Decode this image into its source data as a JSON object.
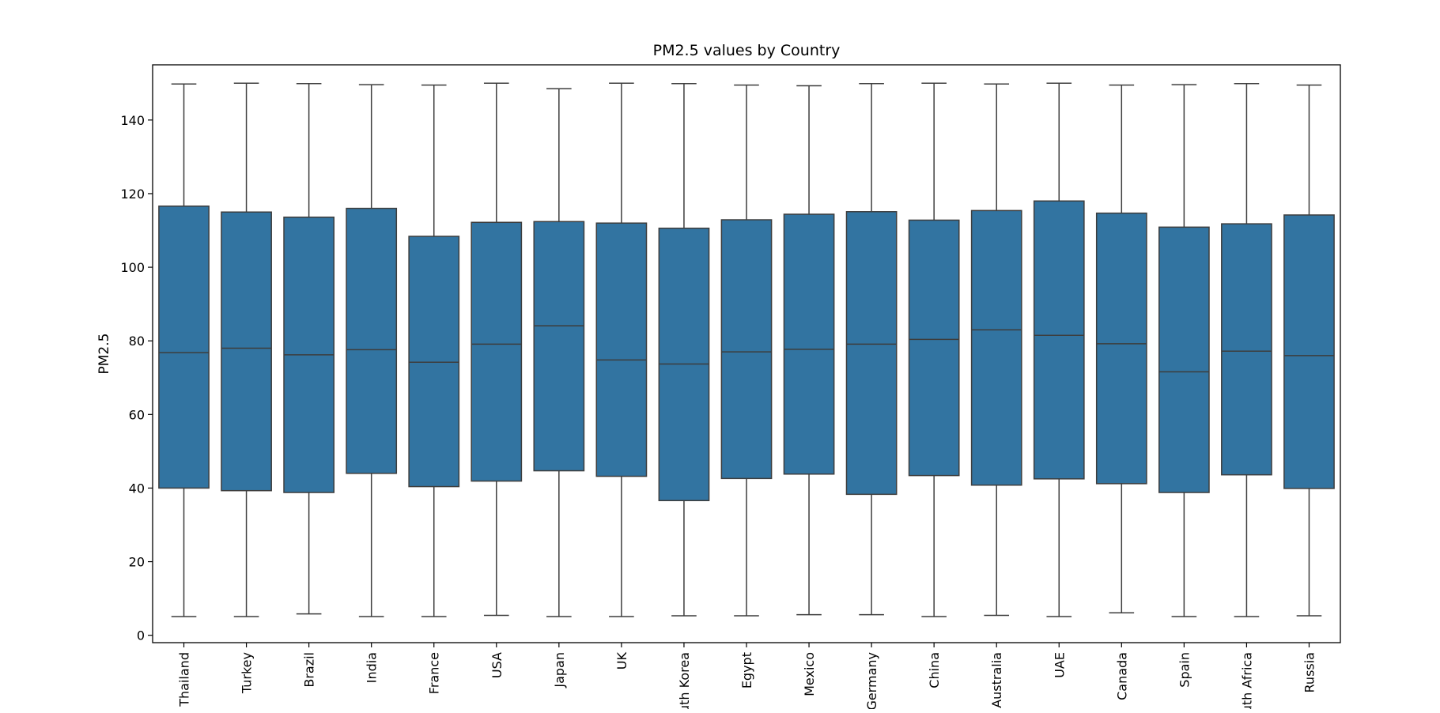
{
  "chart_data": {
    "type": "box",
    "title": "PM2.5 values by Country",
    "xlabel": "",
    "ylabel": "PM2.5",
    "ylim": [
      -2,
      155
    ],
    "yticks": [
      0,
      20,
      40,
      60,
      80,
      100,
      120,
      140
    ],
    "grid": false,
    "legend": "none",
    "colors": {
      "box_fill": "#3274a1",
      "line": "#3d3d3d",
      "frame": "#000000"
    },
    "categories": [
      "Thailand",
      "Turkey",
      "Brazil",
      "India",
      "France",
      "USA",
      "Japan",
      "UK",
      "South Korea",
      "Egypt",
      "Mexico",
      "Germany",
      "China",
      "Australia",
      "UAE",
      "Canada",
      "Spain",
      "South Africa",
      "Russia"
    ],
    "boxes": [
      {
        "category": "Thailand",
        "min": 5.1,
        "q1": 40.0,
        "median": 76.8,
        "q3": 116.6,
        "max": 149.8
      },
      {
        "category": "Turkey",
        "min": 5.1,
        "q1": 39.3,
        "median": 78.0,
        "q3": 115.0,
        "max": 150.0
      },
      {
        "category": "Brazil",
        "min": 5.8,
        "q1": 38.8,
        "median": 76.2,
        "q3": 113.6,
        "max": 149.9
      },
      {
        "category": "India",
        "min": 5.1,
        "q1": 44.0,
        "median": 77.6,
        "q3": 116.0,
        "max": 149.6
      },
      {
        "category": "France",
        "min": 5.1,
        "q1": 40.4,
        "median": 74.2,
        "q3": 108.4,
        "max": 149.5
      },
      {
        "category": "USA",
        "min": 5.4,
        "q1": 41.9,
        "median": 79.1,
        "q3": 112.2,
        "max": 150.0
      },
      {
        "category": "Japan",
        "min": 5.1,
        "q1": 44.7,
        "median": 84.1,
        "q3": 112.4,
        "max": 148.5
      },
      {
        "category": "UK",
        "min": 5.1,
        "q1": 43.2,
        "median": 74.8,
        "q3": 112.0,
        "max": 150.0
      },
      {
        "category": "South Korea",
        "min": 5.3,
        "q1": 36.6,
        "median": 73.7,
        "q3": 110.6,
        "max": 149.9
      },
      {
        "category": "Egypt",
        "min": 5.3,
        "q1": 42.6,
        "median": 77.0,
        "q3": 112.9,
        "max": 149.5
      },
      {
        "category": "Mexico",
        "min": 5.6,
        "q1": 43.8,
        "median": 77.7,
        "q3": 114.4,
        "max": 149.3
      },
      {
        "category": "Germany",
        "min": 5.6,
        "q1": 38.3,
        "median": 79.1,
        "q3": 115.1,
        "max": 149.9
      },
      {
        "category": "China",
        "min": 5.1,
        "q1": 43.4,
        "median": 80.4,
        "q3": 112.8,
        "max": 150.0
      },
      {
        "category": "Australia",
        "min": 5.4,
        "q1": 40.8,
        "median": 83.0,
        "q3": 115.4,
        "max": 149.8
      },
      {
        "category": "UAE",
        "min": 5.1,
        "q1": 42.5,
        "median": 81.5,
        "q3": 118.0,
        "max": 150.0
      },
      {
        "category": "Canada",
        "min": 6.1,
        "q1": 41.2,
        "median": 79.2,
        "q3": 114.7,
        "max": 149.5
      },
      {
        "category": "Spain",
        "min": 5.1,
        "q1": 38.8,
        "median": 71.6,
        "q3": 110.9,
        "max": 149.6
      },
      {
        "category": "South Africa",
        "min": 5.1,
        "q1": 43.6,
        "median": 77.2,
        "q3": 111.8,
        "max": 149.9
      },
      {
        "category": "Russia",
        "min": 5.3,
        "q1": 39.9,
        "median": 76.0,
        "q3": 114.2,
        "max": 149.5
      }
    ]
  }
}
